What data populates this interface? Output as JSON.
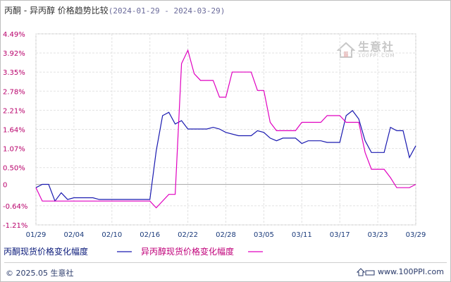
{
  "title": {
    "prefix": "丙酮 - 异丙醇 价格趋势比较",
    "date_range": "(2024-01-29 - 2024-03-29)"
  },
  "chart_data": {
    "type": "line",
    "title": "丙酮 - 异丙醇 价格趋势比较(2024-01-29 - 2024-03-29)",
    "ylim": [
      -1.21,
      4.49
    ],
    "yticks": [
      "4.49%",
      "3.92%",
      "3.35%",
      "2.78%",
      "2.21%",
      "1.64%",
      "1.07%",
      "0.50%",
      "0",
      "-0.64%",
      "-1.21%"
    ],
    "ytick_values": [
      4.49,
      3.92,
      3.35,
      2.78,
      2.21,
      1.64,
      1.07,
      0.5,
      0,
      -0.64,
      -1.21
    ],
    "xticks": [
      "01/29",
      "02/04",
      "02/10",
      "02/16",
      "02/22",
      "02/28",
      "03/05",
      "03/11",
      "03/17",
      "03/23",
      "03/29"
    ],
    "x_start": "01/29",
    "x_end": "03/29",
    "grid": true,
    "legend_position": "bottom",
    "series": [
      {
        "name": "丙酮现货价格变化幅度",
        "color": "#1a1ab0",
        "points": [
          [
            "01/29",
            -0.1
          ],
          [
            "01/30",
            0.0
          ],
          [
            "01/31",
            0.0
          ],
          [
            "02/01",
            -0.5
          ],
          [
            "02/02",
            -0.25
          ],
          [
            "02/03",
            -0.45
          ],
          [
            "02/04",
            -0.4
          ],
          [
            "02/07",
            -0.4
          ],
          [
            "02/08",
            -0.45
          ],
          [
            "02/15",
            -0.45
          ],
          [
            "02/16",
            -0.45
          ],
          [
            "02/17",
            1.0
          ],
          [
            "02/18",
            2.05
          ],
          [
            "02/19",
            2.15
          ],
          [
            "02/20",
            1.8
          ],
          [
            "02/21",
            1.9
          ],
          [
            "02/22",
            1.65
          ],
          [
            "02/25",
            1.65
          ],
          [
            "02/26",
            1.7
          ],
          [
            "02/27",
            1.65
          ],
          [
            "02/28",
            1.55
          ],
          [
            "03/01",
            1.45
          ],
          [
            "03/03",
            1.45
          ],
          [
            "03/04",
            1.6
          ],
          [
            "03/05",
            1.55
          ],
          [
            "03/06",
            1.38
          ],
          [
            "03/07",
            1.3
          ],
          [
            "03/08",
            1.38
          ],
          [
            "03/10",
            1.38
          ],
          [
            "03/11",
            1.22
          ],
          [
            "03/12",
            1.3
          ],
          [
            "03/14",
            1.3
          ],
          [
            "03/15",
            1.25
          ],
          [
            "03/17",
            1.25
          ],
          [
            "03/18",
            2.05
          ],
          [
            "03/19",
            2.2
          ],
          [
            "03/20",
            1.95
          ],
          [
            "03/21",
            1.3
          ],
          [
            "03/22",
            0.95
          ],
          [
            "03/24",
            0.95
          ],
          [
            "03/25",
            1.7
          ],
          [
            "03/26",
            1.6
          ],
          [
            "03/27",
            1.6
          ],
          [
            "03/28",
            0.8
          ],
          [
            "03/29",
            1.15
          ]
        ]
      },
      {
        "name": "异丙醇现货价格变化幅度",
        "color": "#e000c0",
        "points": [
          [
            "01/29",
            -0.1
          ],
          [
            "01/30",
            -0.5
          ],
          [
            "01/31",
            -0.5
          ],
          [
            "02/15",
            -0.5
          ],
          [
            "02/16",
            -0.5
          ],
          [
            "02/17",
            -0.7
          ],
          [
            "02/19",
            -0.3
          ],
          [
            "02/20",
            -0.3
          ],
          [
            "02/21",
            3.6
          ],
          [
            "02/22",
            4.0
          ],
          [
            "02/23",
            3.3
          ],
          [
            "02/24",
            3.1
          ],
          [
            "02/26",
            3.1
          ],
          [
            "02/27",
            2.6
          ],
          [
            "02/28",
            2.6
          ],
          [
            "02/29",
            3.35
          ],
          [
            "03/02",
            3.35
          ],
          [
            "03/03",
            3.35
          ],
          [
            "03/04",
            2.8
          ],
          [
            "03/05",
            2.8
          ],
          [
            "03/06",
            1.85
          ],
          [
            "03/07",
            1.6
          ],
          [
            "03/09",
            1.6
          ],
          [
            "03/10",
            1.6
          ],
          [
            "03/11",
            1.85
          ],
          [
            "03/14",
            1.85
          ],
          [
            "03/15",
            2.05
          ],
          [
            "03/17",
            2.05
          ],
          [
            "03/18",
            1.85
          ],
          [
            "03/20",
            1.85
          ],
          [
            "03/21",
            0.95
          ],
          [
            "03/22",
            0.45
          ],
          [
            "03/24",
            0.45
          ],
          [
            "03/25",
            0.2
          ],
          [
            "03/26",
            -0.1
          ],
          [
            "03/28",
            -0.1
          ],
          [
            "03/29",
            0.0
          ]
        ]
      }
    ]
  },
  "legend": {
    "items": [
      {
        "label": "丙酮现货价格变化幅度",
        "color": "#1a1ab0"
      },
      {
        "label": "异丙醇现货价格变化幅度",
        "color": "#e000c0"
      }
    ]
  },
  "watermark": {
    "text": "生意社",
    "sub": "100PPI.COM"
  },
  "footer": {
    "copyright": "© 2025.05 生意社",
    "url": "www.100PPI.com"
  }
}
